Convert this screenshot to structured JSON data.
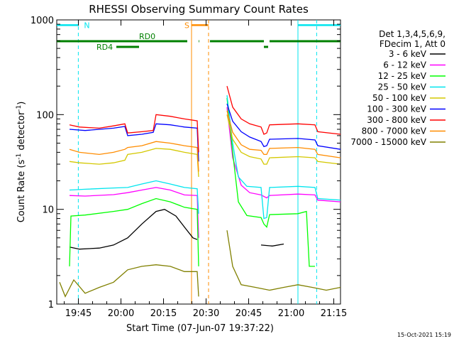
{
  "chart_data": {
    "type": "line",
    "title": "RHESSI Observing Summary Count Rates",
    "xlabel": "Start Time (07-Jun-07 19:37:22)",
    "ylabel_prefix": "Count Rate (s",
    "ylabel_sup1": "-1",
    "ylabel_mid": " detector",
    "ylabel_sup2": "-1",
    "ylabel_suffix": ")",
    "x_unit": "minutes after 19:37:22",
    "xlim": [
      0,
      100
    ],
    "ylim": [
      1,
      1000
    ],
    "yscale": "log",
    "xticks": [
      {
        "label": "19:45",
        "t": 7.63
      },
      {
        "label": "20:00",
        "t": 22.63
      },
      {
        "label": "20:15",
        "t": 37.63
      },
      {
        "label": "20:30",
        "t": 52.63
      },
      {
        "label": "20:45",
        "t": 67.63
      },
      {
        "label": "21:00",
        "t": 82.63
      },
      {
        "label": "21:15",
        "t": 97.63
      }
    ],
    "yticks": [
      {
        "label": "1",
        "v": 1
      },
      {
        "label": "10",
        "v": 10
      },
      {
        "label": "100",
        "v": 100
      },
      {
        "label": "1000",
        "v": 1000
      }
    ],
    "legend_header": [
      "Det 1,3,4,5,6,9,",
      "FDecim 1, Att 0"
    ],
    "legend_position": "right",
    "footer_date": "15-Oct-2021 15:19",
    "bands": [
      {
        "label": "N",
        "color": "#00e5ee",
        "y": 880,
        "segments": [
          [
            0,
            7.6
          ],
          [
            85,
            100
          ]
        ],
        "dashed_lines": [
          7.6,
          91.6
        ],
        "solid_lines": [
          85
        ]
      },
      {
        "label": "S",
        "color": "#ff8c00",
        "y": 880,
        "segments": [
          [
            47.5,
            53.5
          ]
        ],
        "dashed_lines": [
          53.5
        ],
        "solid_lines": [
          47.5
        ]
      }
    ],
    "flags": [
      {
        "label": "RD0",
        "color": "#008000",
        "level": 1,
        "segments": [
          [
            0,
            46
          ],
          [
            50,
            50.2
          ],
          [
            54,
            73
          ],
          [
            75,
            100
          ]
        ]
      },
      {
        "label": "RD4",
        "color": "#008000",
        "level": 2,
        "segments": [
          [
            21,
            29
          ],
          [
            73,
            74.5
          ]
        ]
      }
    ],
    "series": [
      {
        "name": "3 - 6 keV",
        "color": "#000000",
        "points": [
          [
            4.5,
            4
          ],
          [
            8,
            3.8
          ],
          [
            15,
            3.9
          ],
          [
            20,
            4.2
          ],
          [
            25,
            5
          ],
          [
            30,
            7
          ],
          [
            35,
            9.5
          ],
          [
            38,
            10
          ],
          [
            42,
            8.5
          ],
          [
            45,
            6.5
          ],
          [
            48,
            5
          ],
          [
            49.5,
            4.8
          ],
          [
            49.6,
            null
          ],
          [
            59,
            null
          ],
          [
            68,
            null
          ],
          [
            72,
            4.2
          ],
          [
            76,
            4.1
          ],
          [
            80,
            4.3
          ],
          [
            81,
            null
          ]
        ]
      },
      {
        "name": "6 - 12 keV",
        "color": "#ff00ff",
        "points": [
          [
            4.5,
            14
          ],
          [
            10,
            13.8
          ],
          [
            20,
            14.3
          ],
          [
            25,
            15
          ],
          [
            30,
            16
          ],
          [
            35,
            17
          ],
          [
            40,
            16
          ],
          [
            45,
            14.2
          ],
          [
            49.5,
            14
          ],
          [
            50,
            5
          ],
          [
            59,
            null
          ],
          [
            60,
            120
          ],
          [
            62,
            35
          ],
          [
            65,
            18
          ],
          [
            68,
            15
          ],
          [
            72,
            14.2
          ],
          [
            74,
            13.2
          ],
          [
            75,
            14
          ],
          [
            85,
            14.5
          ],
          [
            91,
            14.2
          ],
          [
            92,
            12.5
          ],
          [
            100,
            12
          ]
        ]
      },
      {
        "name": "12 - 25 keV",
        "color": "#00ff00",
        "points": [
          [
            4.5,
            2.5
          ],
          [
            5,
            8.5
          ],
          [
            10,
            8.7
          ],
          [
            20,
            9.5
          ],
          [
            25,
            10
          ],
          [
            30,
            11.5
          ],
          [
            35,
            13
          ],
          [
            40,
            12
          ],
          [
            45,
            10.5
          ],
          [
            49.5,
            10
          ],
          [
            50,
            2.5
          ],
          [
            59,
            null
          ],
          [
            60,
            150
          ],
          [
            62,
            40
          ],
          [
            64,
            12
          ],
          [
            67,
            8.6
          ],
          [
            72,
            8.2
          ],
          [
            73,
            7
          ],
          [
            74,
            6.5
          ],
          [
            75,
            8.8
          ],
          [
            85,
            9
          ],
          [
            88,
            9.5
          ],
          [
            89,
            2.5
          ],
          [
            91,
            2.5
          ],
          [
            92,
            null
          ]
        ]
      },
      {
        "name": "25 - 50 keV",
        "color": "#00e5ee",
        "points": [
          [
            4.5,
            16
          ],
          [
            10,
            16.3
          ],
          [
            20,
            16.8
          ],
          [
            25,
            17
          ],
          [
            30,
            18.5
          ],
          [
            35,
            20
          ],
          [
            40,
            18.5
          ],
          [
            45,
            17
          ],
          [
            49.5,
            16.5
          ],
          [
            50,
            9
          ],
          [
            59,
            null
          ],
          [
            60,
            160
          ],
          [
            62,
            50
          ],
          [
            64,
            22
          ],
          [
            67,
            17.5
          ],
          [
            72,
            17
          ],
          [
            73,
            8
          ],
          [
            74,
            8.2
          ],
          [
            75,
            17
          ],
          [
            85,
            17.5
          ],
          [
            91,
            17
          ],
          [
            92,
            13
          ],
          [
            100,
            12.5
          ]
        ]
      },
      {
        "name": "50 - 100 keV",
        "color": "#d4c800",
        "points": [
          [
            4.5,
            32
          ],
          [
            8,
            31
          ],
          [
            15,
            30
          ],
          [
            20,
            31
          ],
          [
            24,
            33
          ],
          [
            25,
            38
          ],
          [
            30,
            40
          ],
          [
            35,
            44
          ],
          [
            40,
            43
          ],
          [
            45,
            40
          ],
          [
            49.5,
            38
          ],
          [
            50,
            22
          ],
          [
            59,
            null
          ],
          [
            60,
            100
          ],
          [
            62,
            55
          ],
          [
            65,
            40
          ],
          [
            68,
            36
          ],
          [
            72,
            34
          ],
          [
            73,
            30
          ],
          [
            74,
            30
          ],
          [
            75,
            35
          ],
          [
            85,
            36
          ],
          [
            91,
            35
          ],
          [
            92,
            32
          ],
          [
            100,
            30
          ]
        ]
      },
      {
        "name": "100 - 300 keV",
        "color": "#0000ff",
        "points": [
          [
            4.5,
            70
          ],
          [
            10,
            68
          ],
          [
            20,
            72
          ],
          [
            24,
            75
          ],
          [
            25,
            60
          ],
          [
            30,
            62
          ],
          [
            34,
            65
          ],
          [
            35,
            80
          ],
          [
            40,
            78
          ],
          [
            45,
            74
          ],
          [
            49.5,
            72
          ],
          [
            50,
            32
          ],
          [
            59,
            null
          ],
          [
            60,
            130
          ],
          [
            62,
            85
          ],
          [
            65,
            66
          ],
          [
            68,
            58
          ],
          [
            72,
            52
          ],
          [
            73,
            46
          ],
          [
            74,
            47
          ],
          [
            75,
            55
          ],
          [
            85,
            56
          ],
          [
            91,
            54
          ],
          [
            92,
            47
          ],
          [
            100,
            43
          ]
        ]
      },
      {
        "name": "300 - 800 keV",
        "color": "#ff0000",
        "points": [
          [
            4.5,
            78
          ],
          [
            8,
            74
          ],
          [
            15,
            72
          ],
          [
            20,
            76
          ],
          [
            24,
            80
          ],
          [
            25,
            64
          ],
          [
            30,
            66
          ],
          [
            34,
            68
          ],
          [
            35,
            100
          ],
          [
            40,
            96
          ],
          [
            45,
            90
          ],
          [
            49.5,
            86
          ],
          [
            50,
            40
          ],
          [
            59,
            null
          ],
          [
            60,
            200
          ],
          [
            62,
            120
          ],
          [
            65,
            90
          ],
          [
            68,
            80
          ],
          [
            72,
            74
          ],
          [
            73,
            62
          ],
          [
            74,
            64
          ],
          [
            75,
            78
          ],
          [
            85,
            80
          ],
          [
            91,
            78
          ],
          [
            92,
            66
          ],
          [
            100,
            62
          ]
        ]
      },
      {
        "name": "800 - 7000 keV",
        "color": "#ff8c00",
        "points": [
          [
            4.5,
            43
          ],
          [
            8,
            40
          ],
          [
            15,
            38
          ],
          [
            20,
            40
          ],
          [
            24,
            43
          ],
          [
            25,
            45
          ],
          [
            30,
            47
          ],
          [
            35,
            52
          ],
          [
            40,
            50
          ],
          [
            45,
            47
          ],
          [
            49.5,
            45
          ],
          [
            50,
            25
          ],
          [
            59,
            null
          ],
          [
            60,
            110
          ],
          [
            62,
            65
          ],
          [
            65,
            48
          ],
          [
            68,
            43
          ],
          [
            72,
            42
          ],
          [
            73,
            38
          ],
          [
            74,
            38
          ],
          [
            75,
            44
          ],
          [
            85,
            45
          ],
          [
            91,
            43
          ],
          [
            92,
            38
          ],
          [
            100,
            35
          ]
        ]
      },
      {
        "name": "7000 - 15000 keV",
        "color": "#808000",
        "points": [
          [
            1,
            1.7
          ],
          [
            3,
            1.2
          ],
          [
            6,
            1.8
          ],
          [
            10,
            1.3
          ],
          [
            15,
            1.5
          ],
          [
            20,
            1.7
          ],
          [
            25,
            2.3
          ],
          [
            30,
            2.5
          ],
          [
            35,
            2.6
          ],
          [
            40,
            2.5
          ],
          [
            45,
            2.2
          ],
          [
            49.5,
            2.2
          ],
          [
            50,
            1.2
          ],
          [
            53,
            null
          ],
          [
            59,
            null
          ],
          [
            60,
            6
          ],
          [
            62,
            2.5
          ],
          [
            65,
            1.6
          ],
          [
            70,
            1.5
          ],
          [
            75,
            1.4
          ],
          [
            80,
            1.5
          ],
          [
            85,
            1.6
          ],
          [
            90,
            1.5
          ],
          [
            95,
            1.4
          ],
          [
            100,
            1.5
          ]
        ]
      }
    ]
  }
}
